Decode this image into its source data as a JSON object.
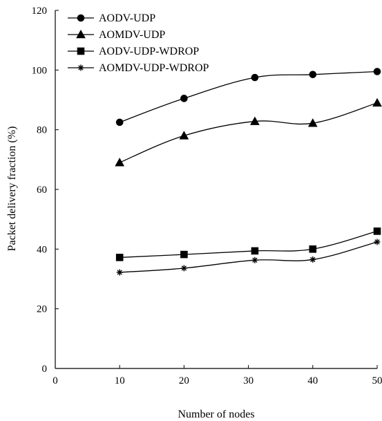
{
  "chart_data": {
    "type": "line",
    "title": "",
    "xlabel": "Number of nodes",
    "ylabel": "Packet delivery fraction (%)",
    "xlim": [
      0,
      50
    ],
    "ylim": [
      0,
      120
    ],
    "xticks": [
      0,
      10,
      20,
      30,
      40,
      50
    ],
    "yticks": [
      0,
      20,
      40,
      60,
      80,
      100,
      120
    ],
    "grid": false,
    "legend_position": "top-left",
    "series": [
      {
        "name": "AODV-UDP",
        "marker": "circle",
        "color": "#000000",
        "x": [
          10,
          20,
          31,
          40,
          50
        ],
        "y": [
          82.5,
          90.5,
          97.5,
          98.5,
          99.5
        ]
      },
      {
        "name": "AOMDV-UDP",
        "marker": "triangle",
        "color": "#000000",
        "x": [
          10,
          20,
          31,
          40,
          50
        ],
        "y": [
          69,
          78,
          82.8,
          82.2,
          89
        ]
      },
      {
        "name": "AODV-UDP-WDROP",
        "marker": "square",
        "color": "#000000",
        "x": [
          10,
          20,
          31,
          40,
          50
        ],
        "y": [
          37.2,
          38.2,
          39.4,
          40,
          46
        ]
      },
      {
        "name": "AOMDV-UDP-WDROP",
        "marker": "star",
        "color": "#000000",
        "x": [
          10,
          20,
          31,
          40,
          50
        ],
        "y": [
          32.2,
          33.6,
          36.3,
          36.5,
          42.4
        ]
      }
    ]
  }
}
